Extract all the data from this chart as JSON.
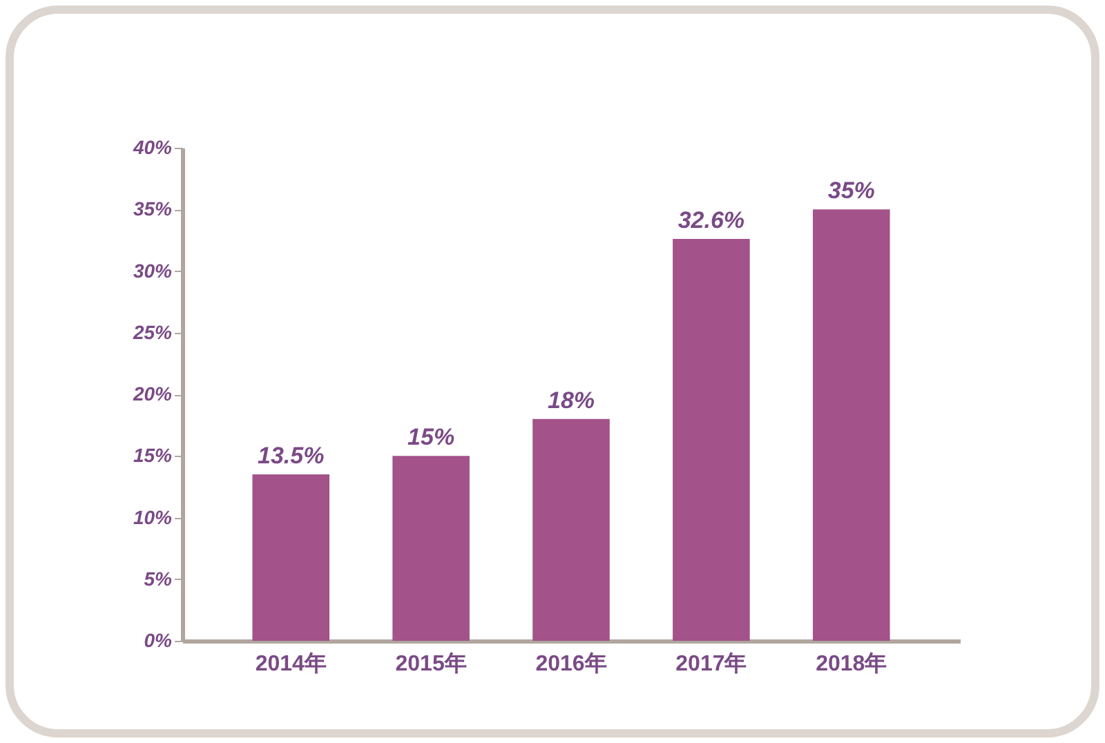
{
  "chart_data": {
    "type": "bar",
    "categories": [
      "2014年",
      "2015年",
      "2016年",
      "2017年",
      "2018年"
    ],
    "values": [
      13.5,
      15,
      18,
      32.6,
      35
    ],
    "value_labels": [
      "13.5%",
      "15%",
      "18%",
      "32.6%",
      "35%"
    ],
    "color": "#a3528a",
    "ylim": [
      0,
      40
    ],
    "yticks": [
      {
        "value": 0,
        "label": "0%"
      },
      {
        "value": 5,
        "label": "5%"
      },
      {
        "value": 10,
        "label": "10%"
      },
      {
        "value": 15,
        "label": "15%"
      },
      {
        "value": 20,
        "label": "20%"
      },
      {
        "value": 25,
        "label": "25%"
      },
      {
        "value": 30,
        "label": "30%"
      },
      {
        "value": 35,
        "label": "35%"
      },
      {
        "value": 40,
        "label": "40%"
      }
    ],
    "grid": false
  }
}
